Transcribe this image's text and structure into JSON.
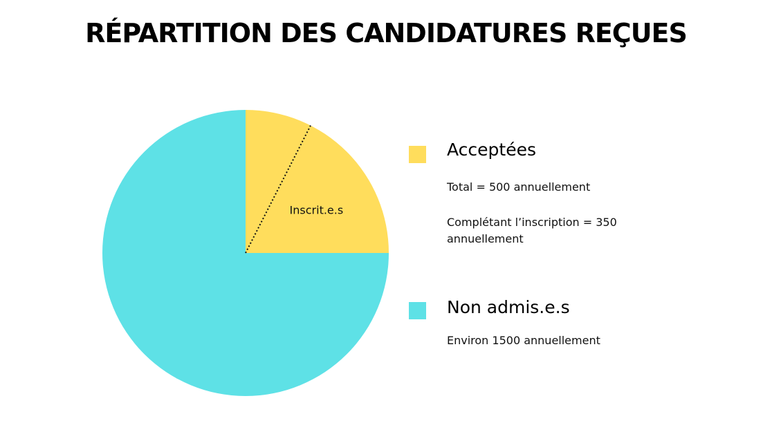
{
  "chart_data": {
    "type": "pie",
    "title": "RÉPARTITION DES CANDIDATURES REÇUES",
    "slices": [
      {
        "label": "Acceptées",
        "value": 500,
        "color": "#FFDD5C",
        "sub_label": "Inscrit.e.s",
        "sub_value": 350
      },
      {
        "label": "Non admis.e.s",
        "value": 1500,
        "color": "#5EE1E6"
      }
    ],
    "start_angle_deg": 0,
    "legend_position": "right"
  },
  "legend": [
    {
      "name": "Acceptées",
      "color": "#FFDD5C",
      "notes": [
        "Total = 500 annuellement",
        "Complétant l’inscription = 350 annuellement"
      ]
    },
    {
      "name": "Non admis.e.s",
      "color": "#5EE1E6",
      "notes": [
        "Environ 1500 annuellement"
      ]
    }
  ]
}
